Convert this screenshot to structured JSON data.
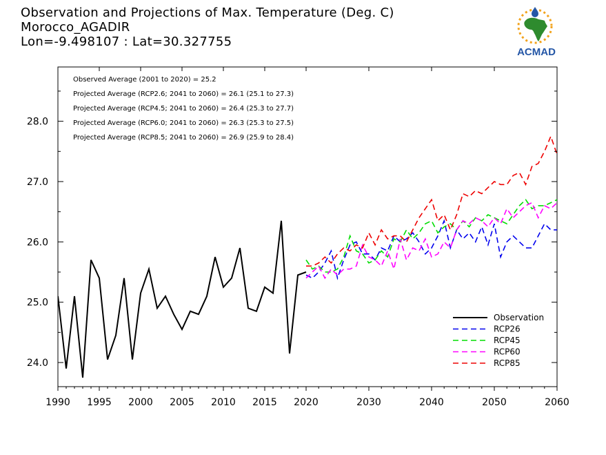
{
  "header": {
    "title": "Observation and Projections of Max. Temperature (Deg. C)",
    "location": "Morocco_AGADIR",
    "coords": "Lon=-9.498107 : Lat=30.327755"
  },
  "logo": {
    "text": "ACMAD",
    "accent": "#f2a31c",
    "green": "#2e8b2e",
    "blue": "#2456a6"
  },
  "chart_data": {
    "type": "line",
    "xlim": [
      1990,
      2060
    ],
    "ylim": [
      23.6,
      28.9
    ],
    "x_ticks": [
      1990,
      1995,
      2000,
      2005,
      2010,
      2015,
      2020,
      2030,
      2040,
      2050,
      2060
    ],
    "x_tick_labels": [
      "1990",
      "1995",
      "2000",
      "2005",
      "2010",
      "2015",
      "2020",
      "2030",
      "2040",
      "2050",
      "2060"
    ],
    "y_ticks": [
      24.0,
      25.0,
      26.0,
      27.0,
      28.0
    ],
    "y_tick_labels": [
      "24.0",
      "25.0",
      "26.0",
      "27.0",
      "28.0"
    ],
    "annotations": [
      "Observed Average (2001 to 2020) = 25.2",
      "Projected Average (RCP2.6; 2041 to 2060) = 26.1 (25.1 to 27.3)",
      "Projected Average (RCP4.5; 2041 to 2060) = 26.4 (25.3 to 27.7)",
      "Projected Average (RCP6.0; 2041 to 2060) = 26.3 (25.3 to 27.5)",
      "Projected Average (RCP8.5; 2041 to 2060) = 26.9 (25.9 to 28.4)"
    ],
    "legend_position": "bottom-right",
    "series": [
      {
        "name": "Observation",
        "color": "#000000",
        "dashed": false,
        "x": [
          1990,
          1991,
          1992,
          1993,
          1994,
          1995,
          1996,
          1997,
          1998,
          1999,
          2000,
          2001,
          2002,
          2003,
          2004,
          2005,
          2006,
          2007,
          2008,
          2009,
          2010,
          2011,
          2012,
          2013,
          2014,
          2015,
          2016,
          2017,
          2018,
          2019,
          2020
        ],
        "y": [
          25.1,
          23.9,
          25.1,
          23.75,
          25.7,
          25.4,
          24.05,
          24.45,
          25.4,
          24.05,
          25.15,
          25.55,
          24.9,
          25.1,
          24.8,
          24.55,
          24.85,
          24.8,
          25.1,
          25.75,
          25.25,
          25.4,
          25.9,
          24.9,
          24.85,
          25.25,
          25.15,
          26.35,
          24.15,
          25.45,
          25.5
        ]
      },
      {
        "name": "RCP26",
        "color": "#0000ee",
        "dashed": true,
        "x": [
          2020,
          2021,
          2022,
          2023,
          2024,
          2025,
          2026,
          2027,
          2028,
          2029,
          2030,
          2031,
          2032,
          2033,
          2034,
          2035,
          2036,
          2037,
          2038,
          2039,
          2040,
          2041,
          2042,
          2043,
          2044,
          2045,
          2046,
          2047,
          2048,
          2049,
          2050,
          2051,
          2052,
          2053,
          2054,
          2055,
          2056,
          2057,
          2058,
          2059,
          2060
        ],
        "y": [
          25.45,
          25.4,
          25.5,
          25.65,
          25.85,
          25.4,
          25.7,
          25.95,
          26.0,
          25.8,
          25.8,
          25.7,
          25.9,
          25.85,
          26.1,
          26.0,
          26.05,
          26.15,
          26.0,
          25.8,
          25.9,
          26.1,
          26.35,
          25.9,
          26.2,
          26.05,
          26.15,
          26.0,
          26.25,
          25.95,
          26.3,
          25.75,
          26.0,
          26.1,
          26.0,
          25.9,
          25.9,
          26.1,
          26.3,
          26.2,
          26.2
        ]
      },
      {
        "name": "RCP45",
        "color": "#00dd00",
        "dashed": true,
        "x": [
          2020,
          2021,
          2022,
          2023,
          2024,
          2025,
          2026,
          2027,
          2028,
          2029,
          2030,
          2031,
          2032,
          2033,
          2034,
          2035,
          2036,
          2037,
          2038,
          2039,
          2040,
          2041,
          2042,
          2043,
          2044,
          2045,
          2046,
          2047,
          2048,
          2049,
          2050,
          2051,
          2052,
          2053,
          2054,
          2055,
          2056,
          2057,
          2058,
          2059,
          2060
        ],
        "y": [
          25.7,
          25.55,
          25.6,
          25.5,
          25.5,
          25.55,
          25.75,
          26.1,
          25.85,
          25.8,
          25.65,
          25.7,
          25.85,
          25.75,
          26.05,
          26.0,
          26.2,
          26.05,
          26.15,
          26.3,
          26.35,
          26.15,
          26.25,
          26.3,
          26.2,
          26.35,
          26.25,
          26.4,
          26.35,
          26.45,
          26.4,
          26.35,
          26.3,
          26.45,
          26.6,
          26.7,
          26.55,
          26.6,
          26.6,
          26.65,
          26.7
        ]
      },
      {
        "name": "RCP60",
        "color": "#ff00ff",
        "dashed": true,
        "x": [
          2020,
          2021,
          2022,
          2023,
          2024,
          2025,
          2026,
          2027,
          2028,
          2029,
          2030,
          2031,
          2032,
          2033,
          2034,
          2035,
          2036,
          2037,
          2038,
          2039,
          2040,
          2041,
          2042,
          2043,
          2044,
          2045,
          2046,
          2047,
          2048,
          2049,
          2050,
          2051,
          2052,
          2053,
          2054,
          2055,
          2056,
          2057,
          2058,
          2059,
          2060
        ],
        "y": [
          25.4,
          25.5,
          25.6,
          25.4,
          25.55,
          25.45,
          25.55,
          25.55,
          25.6,
          25.95,
          25.75,
          25.7,
          25.6,
          25.85,
          25.55,
          26.05,
          25.7,
          25.9,
          25.85,
          26.05,
          25.75,
          25.8,
          26.0,
          25.9,
          26.2,
          26.35,
          26.3,
          26.4,
          26.35,
          26.25,
          26.4,
          26.3,
          26.55,
          26.4,
          26.5,
          26.6,
          26.65,
          26.4,
          26.6,
          26.55,
          26.65
        ]
      },
      {
        "name": "RCP85",
        "color": "#ee0000",
        "dashed": true,
        "x": [
          2020,
          2021,
          2022,
          2023,
          2024,
          2025,
          2026,
          2027,
          2028,
          2029,
          2030,
          2031,
          2032,
          2033,
          2034,
          2035,
          2036,
          2037,
          2038,
          2039,
          2040,
          2041,
          2042,
          2043,
          2044,
          2045,
          2046,
          2047,
          2048,
          2049,
          2050,
          2051,
          2052,
          2053,
          2054,
          2055,
          2056,
          2057,
          2058,
          2059,
          2060
        ],
        "y": [
          25.6,
          25.6,
          25.65,
          25.75,
          25.65,
          25.8,
          25.9,
          25.85,
          25.95,
          25.9,
          26.15,
          25.95,
          26.2,
          26.05,
          26.1,
          26.1,
          26.0,
          26.2,
          26.4,
          26.55,
          26.7,
          26.35,
          26.45,
          26.2,
          26.45,
          26.8,
          26.75,
          26.85,
          26.8,
          26.9,
          27.0,
          26.95,
          26.95,
          27.1,
          27.15,
          26.95,
          27.25,
          27.3,
          27.5,
          27.75,
          27.45
        ]
      }
    ]
  }
}
